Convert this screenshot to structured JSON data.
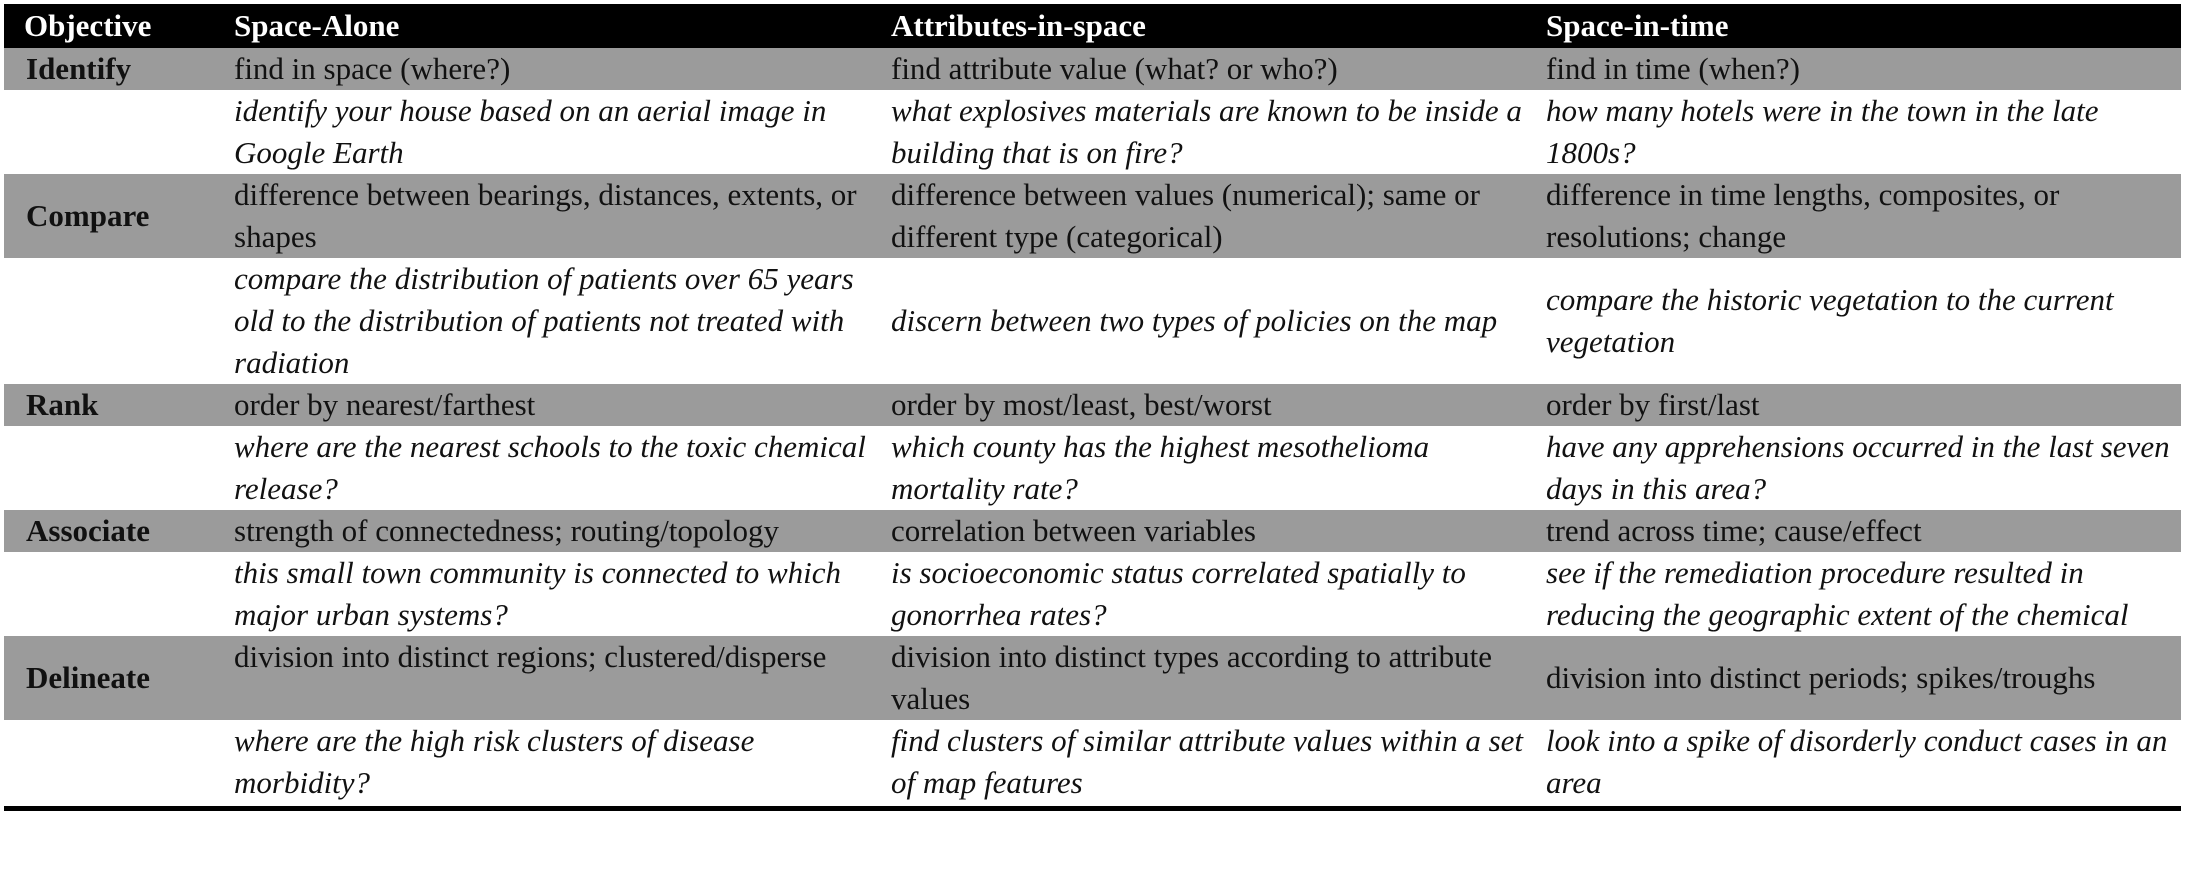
{
  "table": {
    "headers": [
      "Objective",
      "Space-Alone",
      "Attributes-in-space",
      "Space-in-time"
    ],
    "rows": [
      {
        "objective": "Identify",
        "definitions": [
          "find in space (where?)",
          "find attribute value (what? or who?)",
          "find in time (when?)"
        ],
        "examples": [
          "identify your house based on an aerial image in Google Earth",
          "what explosives materials are known to be inside a building that is on fire?",
          "how many hotels were in the town in the late 1800s?"
        ]
      },
      {
        "objective": "Compare",
        "definitions": [
          "difference between bearings, distances, extents, or shapes",
          "difference between values (numerical); same or different type (categorical)",
          "difference in time lengths, composites, or resolutions; change"
        ],
        "examples": [
          "compare the distribution of patients over 65 years old to the distribution of patients not treated with radiation",
          "discern between two types of policies on the map",
          "compare the historic vegetation to the current vegetation"
        ]
      },
      {
        "objective": "Rank",
        "definitions": [
          "order by nearest/farthest",
          "order by most/least, best/worst",
          "order by first/last"
        ],
        "examples": [
          "where are the nearest schools to the toxic chemical release?",
          "which county has the highest mesothelioma mortality rate?",
          "have any apprehensions occurred in the last seven days in this area?"
        ]
      },
      {
        "objective": "Associate",
        "definitions": [
          "strength of connectedness; routing/topology",
          "correlation between variables",
          "trend across time; cause/effect"
        ],
        "examples": [
          "this small town community is connected to which major urban systems?",
          "is socioeconomic status correlated spatially to gonorrhea rates?",
          "see if the remediation procedure resulted in reducing the geographic extent of the chemical"
        ]
      },
      {
        "objective": "Delineate",
        "definitions": [
          "division into distinct regions; clustered/disperse",
          "division into distinct types according to attribute values",
          "division into distinct periods; spikes/troughs"
        ],
        "examples": [
          "where are the high risk clusters of disease morbidity?",
          "find clusters of similar attribute values within a set of map features",
          "look into a spike of disorderly conduct cases in an area"
        ]
      }
    ]
  }
}
